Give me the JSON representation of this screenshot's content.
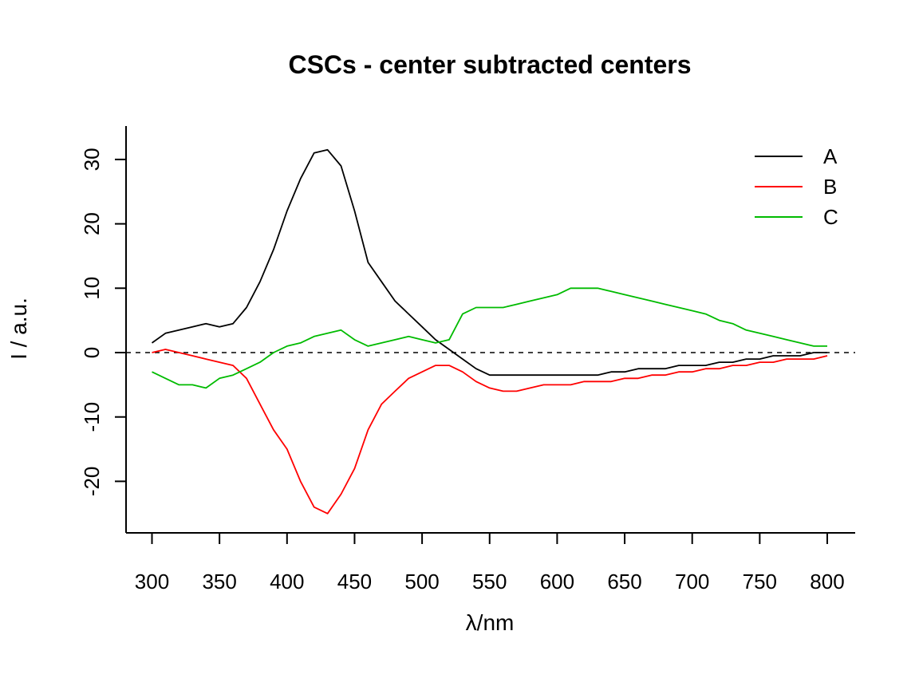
{
  "chart_data": {
    "type": "line",
    "title": "CSCs - center subtracted centers",
    "xlabel_symbol": "λ",
    "xlabel_unit": "nm",
    "ylabel": "I / a.u.",
    "xlim": [
      300,
      800
    ],
    "ylim": [
      -27,
      35
    ],
    "x_ticks": [
      300,
      350,
      400,
      450,
      500,
      550,
      600,
      650,
      700,
      750,
      800
    ],
    "y_ticks": [
      -20,
      -10,
      0,
      10,
      20,
      30
    ],
    "reference_line_y": 0,
    "legend_position": "top-right",
    "x": [
      300,
      310,
      320,
      330,
      340,
      350,
      360,
      370,
      380,
      390,
      400,
      410,
      420,
      430,
      440,
      450,
      460,
      470,
      480,
      490,
      500,
      510,
      520,
      530,
      540,
      550,
      560,
      570,
      580,
      590,
      600,
      610,
      620,
      630,
      640,
      650,
      660,
      670,
      680,
      690,
      700,
      710,
      720,
      730,
      740,
      750,
      760,
      770,
      780,
      790,
      800
    ],
    "series": [
      {
        "name": "A",
        "color": "#000000",
        "values": [
          1.5,
          3,
          3.5,
          4,
          4.5,
          4,
          4.5,
          7,
          11,
          16,
          22,
          27,
          31,
          31.5,
          29,
          22,
          14,
          11,
          8,
          6,
          4,
          2,
          0.5,
          -1,
          -2.5,
          -3.5,
          -3.5,
          -3.5,
          -3.5,
          -3.5,
          -3.5,
          -3.5,
          -3.5,
          -3.5,
          -3,
          -3,
          -2.5,
          -2.5,
          -2.5,
          -2,
          -2,
          -2,
          -1.5,
          -1.5,
          -1,
          -1,
          -0.5,
          -0.5,
          -0.5,
          0,
          0
        ]
      },
      {
        "name": "B",
        "color": "#ff0000",
        "values": [
          0,
          0.5,
          0,
          -0.5,
          -1,
          -1.5,
          -2,
          -4,
          -8,
          -12,
          -15,
          -20,
          -24,
          -25,
          -22,
          -18,
          -12,
          -8,
          -6,
          -4,
          -3,
          -2,
          -2,
          -3,
          -4.5,
          -5.5,
          -6,
          -6,
          -5.5,
          -5,
          -5,
          -5,
          -4.5,
          -4.5,
          -4.5,
          -4,
          -4,
          -3.5,
          -3.5,
          -3,
          -3,
          -2.5,
          -2.5,
          -2,
          -2,
          -1.5,
          -1.5,
          -1,
          -1,
          -1,
          -0.5
        ]
      },
      {
        "name": "C",
        "color": "#00bb00",
        "values": [
          -3,
          -4,
          -5,
          -5,
          -5.5,
          -4,
          -3.5,
          -2.5,
          -1.5,
          0,
          1,
          1.5,
          2.5,
          3,
          3.5,
          2,
          1,
          1.5,
          2,
          2.5,
          2,
          1.5,
          2,
          6,
          7,
          7,
          7,
          7.5,
          8,
          8.5,
          9,
          10,
          10,
          10,
          9.5,
          9,
          8.5,
          8,
          7.5,
          7,
          6.5,
          6,
          5,
          4.5,
          3.5,
          3,
          2.5,
          2,
          1.5,
          1,
          1
        ]
      }
    ]
  }
}
